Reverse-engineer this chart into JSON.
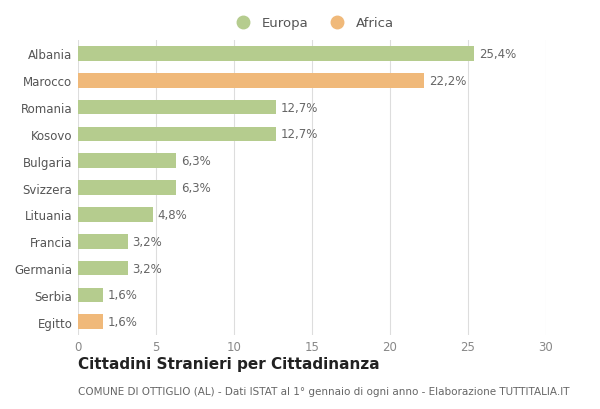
{
  "categories": [
    "Albania",
    "Marocco",
    "Romania",
    "Kosovo",
    "Bulgaria",
    "Svizzera",
    "Lituania",
    "Francia",
    "Germania",
    "Serbia",
    "Egitto"
  ],
  "values": [
    25.4,
    22.2,
    12.7,
    12.7,
    6.3,
    6.3,
    4.8,
    3.2,
    3.2,
    1.6,
    1.6
  ],
  "labels": [
    "25,4%",
    "22,2%",
    "12,7%",
    "12,7%",
    "6,3%",
    "6,3%",
    "4,8%",
    "3,2%",
    "3,2%",
    "1,6%",
    "1,6%"
  ],
  "colors": [
    "#b5cc8e",
    "#f0b97a",
    "#b5cc8e",
    "#b5cc8e",
    "#b5cc8e",
    "#b5cc8e",
    "#b5cc8e",
    "#b5cc8e",
    "#b5cc8e",
    "#b5cc8e",
    "#f0b97a"
  ],
  "legend_labels": [
    "Europa",
    "Africa"
  ],
  "legend_colors": [
    "#b5cc8e",
    "#f0b97a"
  ],
  "title": "Cittadini Stranieri per Cittadinanza",
  "subtitle": "COMUNE DI OTTIGLIO (AL) - Dati ISTAT al 1° gennaio di ogni anno - Elaborazione TUTTITALIA.IT",
  "xlim": [
    0,
    30
  ],
  "xticks": [
    0,
    5,
    10,
    15,
    20,
    25,
    30
  ],
  "background_color": "#ffffff",
  "grid_color": "#dddddd",
  "title_fontsize": 11,
  "subtitle_fontsize": 7.5,
  "label_fontsize": 8.5,
  "tick_fontsize": 8.5,
  "legend_fontsize": 9.5
}
